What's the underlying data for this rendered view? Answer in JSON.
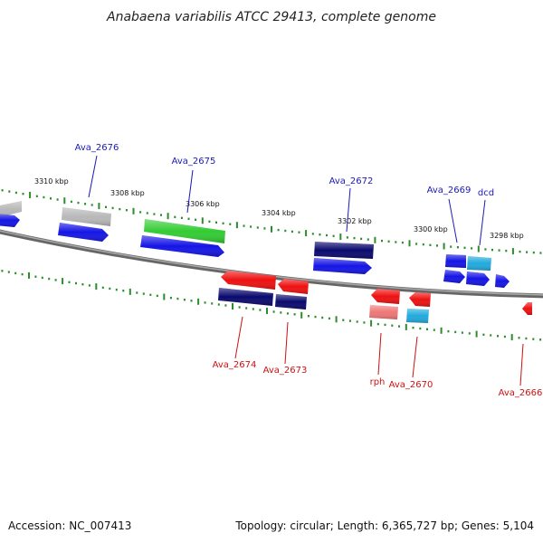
{
  "title": "Anabaena variabilis ATCC 29413, complete genome",
  "footer": {
    "accession": "Accession: NC_007413",
    "topology": "Topology: circular; Length: 6,365,727 bp; Genes: 5,104"
  },
  "colors": {
    "backbone": "#7a7a7a",
    "tick": "#2e8b2e",
    "label_forward": "#1a1ab4",
    "label_reverse": "#cc1111",
    "blue": "#1515e6",
    "navy": "#0a0a6e",
    "green": "#33cc33",
    "gray": "#b8b8b8",
    "red": "#ee1111",
    "pink": "#ee7777",
    "cyan": "#22aadd"
  },
  "kbp_labels": [
    "3310 kbp",
    "3308 kbp",
    "3306 kbp",
    "3304 kbp",
    "3302 kbp",
    "3300 kbp",
    "3298 kbp"
  ],
  "gene_labels_forward": [
    "Ava_2676",
    "Ava_2675",
    "Ava_2672",
    "Ava_2669",
    "dcd"
  ],
  "gene_labels_reverse": [
    "Ava_2674",
    "Ava_2673",
    "rph",
    "Ava_2670",
    "Ava_2666"
  ]
}
